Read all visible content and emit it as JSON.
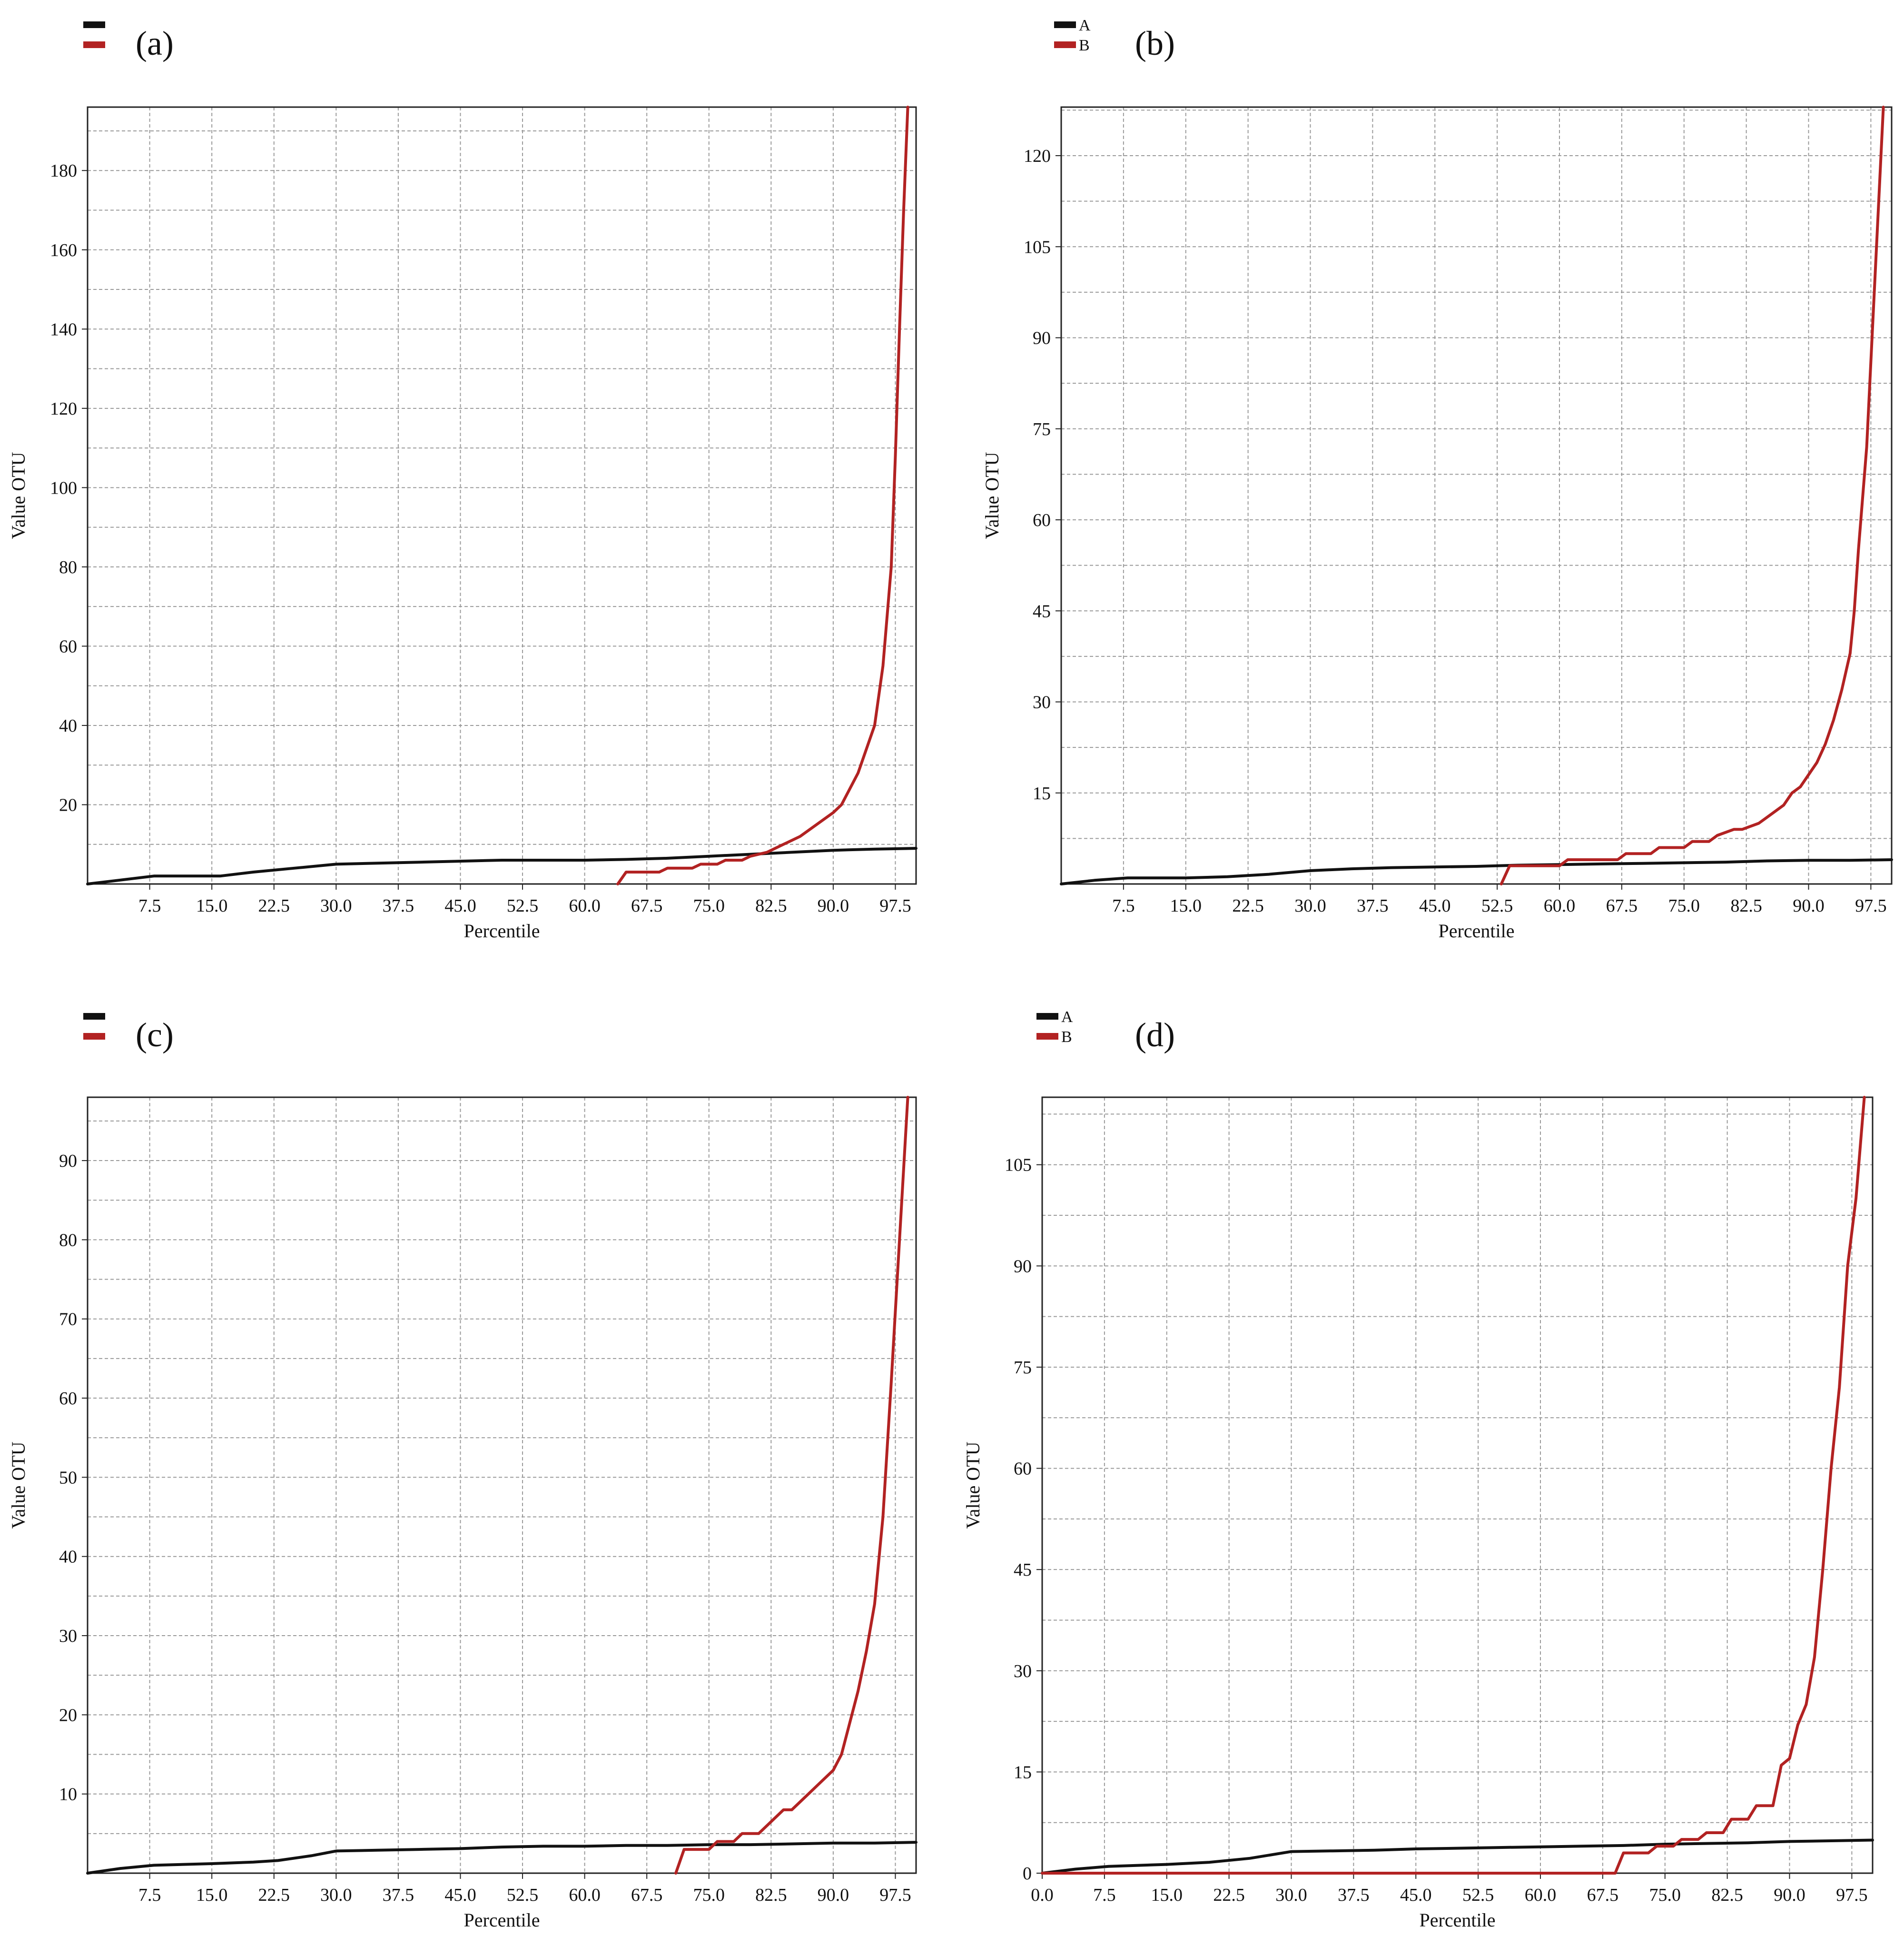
{
  "colors": {
    "series_a": "#111111",
    "series_b": "#b22222",
    "grid": "#9a9a9a",
    "axis": "#222222"
  },
  "chart_data": [
    {
      "type": "line",
      "panel_label": "(a)",
      "legend": [
        {
          "name": "",
          "color": "#111111"
        },
        {
          "name": "",
          "color": "#b22222"
        }
      ],
      "xlabel": "Percentile",
      "ylabel": "Value OTU",
      "xlim": [
        0,
        100
      ],
      "ylim": [
        0,
        196
      ],
      "x_ticks": [
        7.5,
        15.0,
        22.5,
        30.0,
        37.5,
        45.0,
        52.5,
        60.0,
        67.5,
        75.0,
        82.5,
        90.0,
        97.5
      ],
      "x_tick_labels": [
        "7.5",
        "15.0",
        "22.5",
        "30.0",
        "37.5",
        "45.0",
        "52.5",
        "60.0",
        "67.5",
        "75.0",
        "82.5",
        "90.0",
        "97.5"
      ],
      "y_ticks": [
        20,
        40,
        60,
        80,
        100,
        120,
        140,
        160,
        180
      ],
      "y_tick_labels": [
        "20",
        "40",
        "60",
        "80",
        "100",
        "120",
        "140",
        "160",
        "180"
      ],
      "grid": true,
      "series": [
        {
          "color": "#111111",
          "x": [
            0,
            4,
            8,
            12,
            16,
            20,
            25,
            30,
            40,
            50,
            55,
            60,
            65,
            70,
            75,
            80,
            85,
            90,
            95,
            100
          ],
          "y": [
            0,
            1,
            2,
            2,
            2,
            3,
            4,
            5,
            5.5,
            6,
            6,
            6,
            6.2,
            6.5,
            7,
            7.5,
            8,
            8.5,
            8.8,
            9
          ]
        },
        {
          "color": "#b22222",
          "x": [
            64,
            65,
            69,
            70,
            73,
            74,
            76,
            77,
            79,
            80,
            82,
            84,
            86,
            88,
            90,
            91,
            93,
            95,
            96,
            97,
            97.5,
            98,
            98.5,
            99
          ],
          "y": [
            0,
            3,
            3,
            4,
            4,
            5,
            5,
            6,
            6,
            7,
            8,
            10,
            12,
            15,
            18,
            20,
            28,
            40,
            55,
            80,
            108,
            140,
            170,
            196
          ]
        }
      ]
    },
    {
      "type": "line",
      "panel_label": "(b)",
      "legend": [
        {
          "name": "A",
          "color": "#111111"
        },
        {
          "name": "B",
          "color": "#b22222"
        }
      ],
      "xlabel": "Percentile",
      "ylabel": "Value OTU",
      "xlim": [
        0,
        100
      ],
      "ylim": [
        0,
        128
      ],
      "x_ticks": [
        7.5,
        15.0,
        22.5,
        30.0,
        37.5,
        45.0,
        52.5,
        60.0,
        67.5,
        75.0,
        82.5,
        90.0,
        97.5
      ],
      "x_tick_labels": [
        "7.5",
        "15.0",
        "22.5",
        "30.0",
        "37.5",
        "45.0",
        "52.5",
        "60.0",
        "67.5",
        "75.0",
        "82.5",
        "90.0",
        "97.5"
      ],
      "y_ticks": [
        15,
        30,
        45,
        60,
        75,
        90,
        105,
        120
      ],
      "y_tick_labels": [
        "15",
        "30",
        "45",
        "60",
        "75",
        "90",
        "105",
        "120"
      ],
      "grid": true,
      "series": [
        {
          "color": "#111111",
          "x": [
            0,
            4,
            8,
            15,
            20,
            25,
            30,
            35,
            40,
            45,
            50,
            55,
            60,
            65,
            70,
            75,
            80,
            85,
            90,
            95,
            100
          ],
          "y": [
            0,
            0.6,
            1,
            1,
            1.2,
            1.6,
            2.2,
            2.5,
            2.7,
            2.8,
            2.9,
            3.1,
            3.2,
            3.3,
            3.4,
            3.5,
            3.6,
            3.8,
            3.9,
            3.9,
            4
          ]
        },
        {
          "color": "#b22222",
          "x": [
            53,
            54,
            60,
            61,
            67,
            68,
            71,
            72,
            75,
            76,
            78,
            79,
            81,
            82,
            84,
            85,
            87,
            88,
            89,
            90,
            91,
            92,
            93,
            94,
            95,
            95.5,
            96,
            97,
            98,
            99
          ],
          "y": [
            0,
            3,
            3,
            4,
            4,
            5,
            5,
            6,
            6,
            7,
            7,
            8,
            9,
            9,
            10,
            11,
            13,
            15,
            16,
            18,
            20,
            23,
            27,
            32,
            38,
            45,
            55,
            72,
            100,
            128
          ]
        }
      ]
    },
    {
      "type": "line",
      "panel_label": "(c)",
      "legend": [
        {
          "name": "",
          "color": "#111111"
        },
        {
          "name": "",
          "color": "#b22222"
        }
      ],
      "xlabel": "Percentile",
      "ylabel": "Value OTU",
      "xlim": [
        0,
        100
      ],
      "ylim": [
        0,
        98
      ],
      "x_ticks": [
        7.5,
        15.0,
        22.5,
        30.0,
        37.5,
        45.0,
        52.5,
        60.0,
        67.5,
        75.0,
        82.5,
        90.0,
        97.5
      ],
      "x_tick_labels": [
        "7.5",
        "15.0",
        "22.5",
        "30.0",
        "37.5",
        "45.0",
        "52.5",
        "60.0",
        "67.5",
        "75.0",
        "82.5",
        "90.0",
        "97.5"
      ],
      "y_ticks": [
        10,
        20,
        30,
        40,
        50,
        60,
        70,
        80,
        90
      ],
      "y_tick_labels": [
        "10",
        "20",
        "30",
        "40",
        "50",
        "60",
        "70",
        "80",
        "90"
      ],
      "grid": true,
      "series": [
        {
          "color": "#111111",
          "x": [
            0,
            4,
            8,
            15,
            20,
            23,
            27,
            30,
            35,
            40,
            45,
            50,
            55,
            60,
            65,
            70,
            75,
            80,
            85,
            90,
            95,
            100
          ],
          "y": [
            0,
            0.6,
            1,
            1.2,
            1.4,
            1.6,
            2.2,
            2.8,
            2.9,
            3,
            3.1,
            3.3,
            3.4,
            3.4,
            3.5,
            3.5,
            3.6,
            3.6,
            3.7,
            3.8,
            3.8,
            3.9
          ]
        },
        {
          "color": "#b22222",
          "x": [
            71,
            72,
            75,
            76,
            78,
            79,
            81,
            82,
            84,
            85,
            87,
            88,
            90,
            91,
            92,
            93,
            94,
            95,
            96,
            97,
            98,
            99
          ],
          "y": [
            0,
            3,
            3,
            4,
            4,
            5,
            5,
            6,
            8,
            8,
            10,
            11,
            13,
            15,
            19,
            23,
            28,
            34,
            45,
            62,
            80,
            98
          ]
        }
      ]
    },
    {
      "type": "line",
      "panel_label": "(d)",
      "legend": [
        {
          "name": "A",
          "color": "#111111"
        },
        {
          "name": "B",
          "color": "#b22222"
        }
      ],
      "xlabel": "Percentile",
      "ylabel": "Value OTU",
      "xlim": [
        0,
        100
      ],
      "ylim": [
        0,
        115
      ],
      "x_ticks": [
        0,
        7.5,
        15.0,
        22.5,
        30.0,
        37.5,
        45.0,
        52.5,
        60.0,
        67.5,
        75.0,
        82.5,
        90.0,
        97.5
      ],
      "x_tick_labels": [
        "0.0",
        "7.5",
        "15.0",
        "22.5",
        "30.0",
        "37.5",
        "45.0",
        "52.5",
        "60.0",
        "67.5",
        "75.0",
        "82.5",
        "90.0",
        "97.5"
      ],
      "y_ticks": [
        0,
        15,
        30,
        45,
        60,
        75,
        90,
        105
      ],
      "y_tick_labels": [
        "0",
        "15",
        "30",
        "45",
        "60",
        "75",
        "90",
        "105"
      ],
      "grid": true,
      "series": [
        {
          "color": "#111111",
          "x": [
            0,
            4,
            8,
            15,
            20,
            25,
            30,
            35,
            40,
            45,
            50,
            55,
            60,
            65,
            70,
            75,
            80,
            85,
            90,
            95,
            100
          ],
          "y": [
            0,
            0.6,
            1,
            1.3,
            1.6,
            2.2,
            3.2,
            3.3,
            3.4,
            3.6,
            3.7,
            3.8,
            3.9,
            4,
            4.1,
            4.3,
            4.4,
            4.5,
            4.7,
            4.8,
            4.9
          ]
        },
        {
          "color": "#b22222",
          "x": [
            0,
            69,
            70,
            73,
            74,
            76,
            77,
            79,
            80,
            82,
            83,
            85,
            86,
            88,
            89,
            90,
            91,
            92,
            93,
            94,
            95,
            96,
            97,
            98,
            99
          ],
          "y": [
            0,
            0,
            3,
            3,
            4,
            4,
            5,
            5,
            6,
            6,
            8,
            8,
            10,
            10,
            16,
            17,
            22,
            25,
            32,
            45,
            60,
            72,
            90,
            100,
            115
          ]
        }
      ]
    }
  ]
}
